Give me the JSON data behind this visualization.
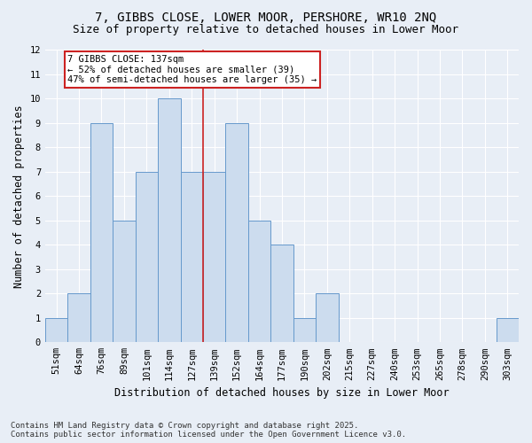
{
  "title": "7, GIBBS CLOSE, LOWER MOOR, PERSHORE, WR10 2NQ",
  "subtitle": "Size of property relative to detached houses in Lower Moor",
  "xlabel": "Distribution of detached houses by size in Lower Moor",
  "ylabel": "Number of detached properties",
  "categories": [
    "51sqm",
    "64sqm",
    "76sqm",
    "89sqm",
    "101sqm",
    "114sqm",
    "127sqm",
    "139sqm",
    "152sqm",
    "164sqm",
    "177sqm",
    "190sqm",
    "202sqm",
    "215sqm",
    "227sqm",
    "240sqm",
    "253sqm",
    "265sqm",
    "278sqm",
    "290sqm",
    "303sqm"
  ],
  "values": [
    1,
    2,
    9,
    5,
    7,
    10,
    7,
    7,
    9,
    5,
    4,
    1,
    2,
    0,
    0,
    0,
    0,
    0,
    0,
    0,
    1
  ],
  "bar_color": "#ccdcee",
  "bar_edge_color": "#6699cc",
  "vline_x_index": 6.5,
  "vline_color": "#cc2222",
  "annotation_line1": "7 GIBBS CLOSE: 137sqm",
  "annotation_line2": "← 52% of detached houses are smaller (39)",
  "annotation_line3": "47% of semi-detached houses are larger (35) →",
  "annotation_box_color": "white",
  "annotation_box_edge_color": "#cc2222",
  "ylim": [
    0,
    12
  ],
  "yticks": [
    0,
    1,
    2,
    3,
    4,
    5,
    6,
    7,
    8,
    9,
    10,
    11,
    12
  ],
  "footnote": "Contains HM Land Registry data © Crown copyright and database right 2025.\nContains public sector information licensed under the Open Government Licence v3.0.",
  "background_color": "#e8eef6",
  "plot_bg_color": "#e8eef6",
  "grid_color": "#ffffff",
  "title_fontsize": 10,
  "subtitle_fontsize": 9,
  "axis_label_fontsize": 8.5,
  "tick_fontsize": 7.5,
  "annotation_fontsize": 7.5,
  "footnote_fontsize": 6.5
}
